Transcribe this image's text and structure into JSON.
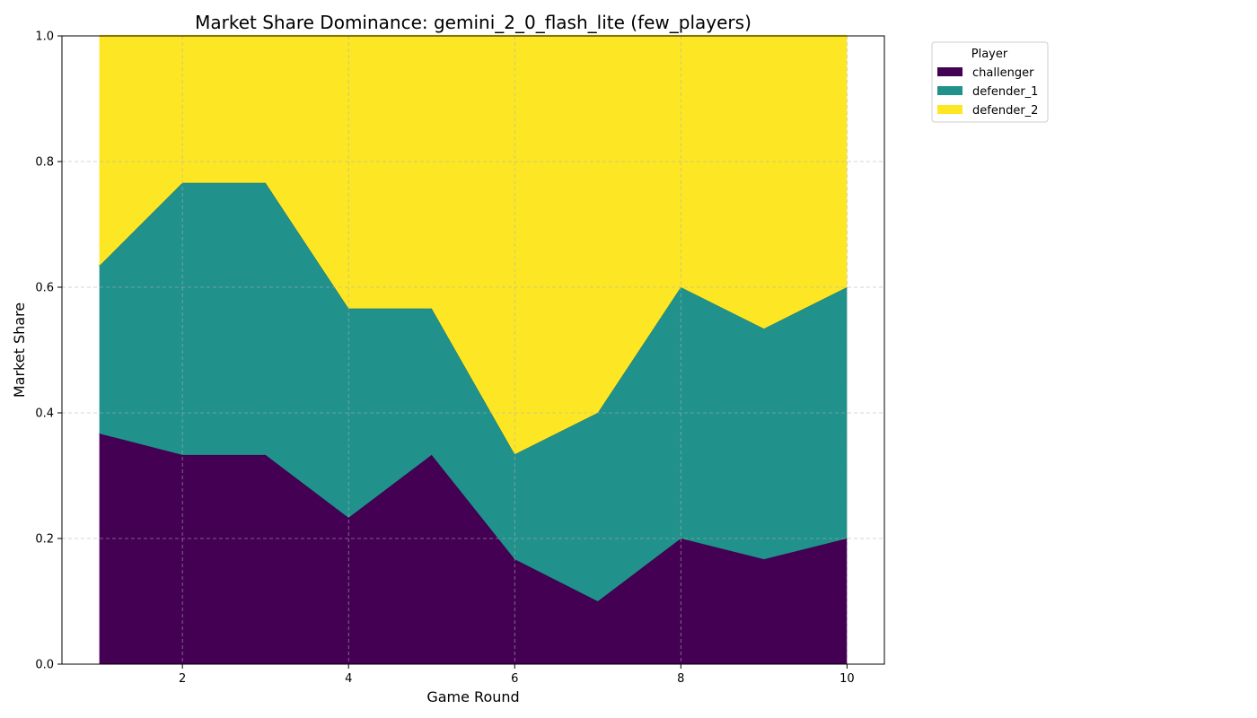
{
  "chart_data": {
    "type": "area",
    "stacked": true,
    "title": "Market Share Dominance: gemini_2_0_flash_lite (few_players)",
    "xlabel": "Game Round",
    "ylabel": "Market Share",
    "x": [
      1,
      2,
      3,
      4,
      5,
      6,
      7,
      8,
      9,
      10
    ],
    "xlim": [
      0.55,
      10.45
    ],
    "ylim": [
      0,
      1
    ],
    "x_ticks": [
      2,
      4,
      6,
      8,
      10
    ],
    "y_ticks": [
      0.0,
      0.2,
      0.4,
      0.6,
      0.8,
      1.0
    ],
    "y_tick_labels": [
      "0.0",
      "0.2",
      "0.4",
      "0.6",
      "0.8",
      "1.0"
    ],
    "grid": true,
    "legend": {
      "title": "Player",
      "placement": "outside-top-right"
    },
    "series": [
      {
        "name": "challenger",
        "color": "#440154",
        "values": [
          0.367,
          0.333,
          0.333,
          0.233,
          0.333,
          0.167,
          0.1,
          0.2,
          0.167,
          0.2
        ]
      },
      {
        "name": "defender_1",
        "color": "#21918c",
        "values": [
          0.267,
          0.433,
          0.433,
          0.333,
          0.233,
          0.167,
          0.3,
          0.4,
          0.367,
          0.4
        ]
      },
      {
        "name": "defender_2",
        "color": "#fde725",
        "values": [
          0.366,
          0.234,
          0.234,
          0.434,
          0.434,
          0.666,
          0.6,
          0.4,
          0.466,
          0.4
        ]
      }
    ]
  }
}
